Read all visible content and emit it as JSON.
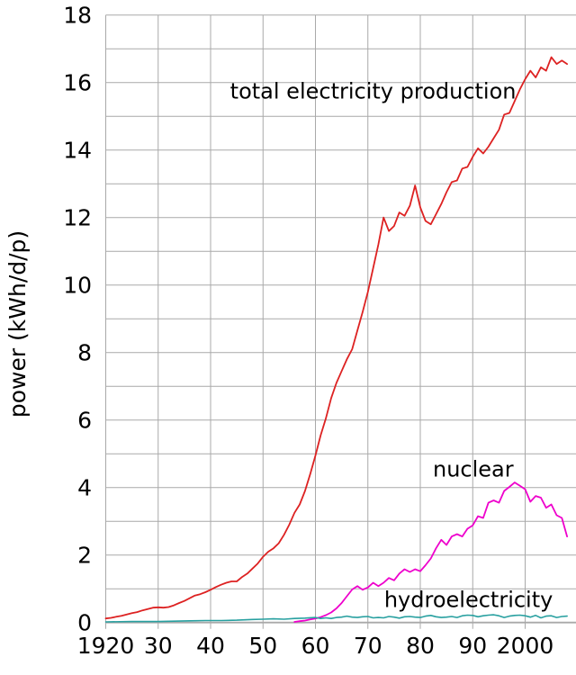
{
  "chart_data": {
    "type": "line",
    "title": "",
    "xlabel": "",
    "ylabel": "power (kWh/d/p)",
    "xlim": [
      1920,
      2009.7
    ],
    "ylim": [
      0,
      18
    ],
    "grid": {
      "x_step_years": 10,
      "y_step": 1,
      "shown": true
    },
    "legend_position": "inline-labels",
    "colors": {
      "total": "#dd2222",
      "nuclear": "#ee00cc",
      "hydro": "#28a0a0",
      "grid": "#a9a9a9",
      "text": "#000000"
    },
    "x_ticks": [
      {
        "year": 1920,
        "label": "1920"
      },
      {
        "year": 1930,
        "label": "30"
      },
      {
        "year": 1940,
        "label": "40"
      },
      {
        "year": 1950,
        "label": "50"
      },
      {
        "year": 1960,
        "label": "60"
      },
      {
        "year": 1970,
        "label": "70"
      },
      {
        "year": 1980,
        "label": "80"
      },
      {
        "year": 1990,
        "label": "90"
      },
      {
        "year": 2000,
        "label": "2000"
      }
    ],
    "y_ticks": [
      {
        "value": 0,
        "label": "0"
      },
      {
        "value": 2,
        "label": "2"
      },
      {
        "value": 4,
        "label": "4"
      },
      {
        "value": 6,
        "label": "6"
      },
      {
        "value": 8,
        "label": "8"
      },
      {
        "value": 10,
        "label": "10"
      },
      {
        "value": 12,
        "label": "12"
      },
      {
        "value": 14,
        "label": "14"
      },
      {
        "value": 16,
        "label": "16"
      },
      {
        "value": 18,
        "label": "18"
      }
    ],
    "series": [
      {
        "name": "total electricity production",
        "key": "total",
        "color": "#dd2222",
        "points": [
          [
            1920,
            0.12
          ],
          [
            1921,
            0.14
          ],
          [
            1922,
            0.17
          ],
          [
            1923,
            0.2
          ],
          [
            1924,
            0.24
          ],
          [
            1925,
            0.28
          ],
          [
            1926,
            0.31
          ],
          [
            1927,
            0.36
          ],
          [
            1928,
            0.4
          ],
          [
            1929,
            0.44
          ],
          [
            1930,
            0.45
          ],
          [
            1931,
            0.44
          ],
          [
            1932,
            0.46
          ],
          [
            1933,
            0.51
          ],
          [
            1934,
            0.58
          ],
          [
            1935,
            0.64
          ],
          [
            1936,
            0.72
          ],
          [
            1937,
            0.8
          ],
          [
            1938,
            0.84
          ],
          [
            1939,
            0.9
          ],
          [
            1940,
            0.97
          ],
          [
            1941,
            1.05
          ],
          [
            1942,
            1.12
          ],
          [
            1943,
            1.18
          ],
          [
            1944,
            1.22
          ],
          [
            1945,
            1.22
          ],
          [
            1946,
            1.35
          ],
          [
            1947,
            1.45
          ],
          [
            1948,
            1.6
          ],
          [
            1949,
            1.75
          ],
          [
            1950,
            1.95
          ],
          [
            1951,
            2.1
          ],
          [
            1952,
            2.2
          ],
          [
            1953,
            2.35
          ],
          [
            1954,
            2.6
          ],
          [
            1955,
            2.9
          ],
          [
            1956,
            3.25
          ],
          [
            1957,
            3.5
          ],
          [
            1958,
            3.9
          ],
          [
            1959,
            4.4
          ],
          [
            1960,
            4.95
          ],
          [
            1961,
            5.55
          ],
          [
            1962,
            6.05
          ],
          [
            1963,
            6.65
          ],
          [
            1964,
            7.1
          ],
          [
            1965,
            7.45
          ],
          [
            1966,
            7.8
          ],
          [
            1967,
            8.1
          ],
          [
            1968,
            8.65
          ],
          [
            1969,
            9.2
          ],
          [
            1970,
            9.8
          ],
          [
            1971,
            10.5
          ],
          [
            1972,
            11.2
          ],
          [
            1973,
            12.0
          ],
          [
            1974,
            11.6
          ],
          [
            1975,
            11.75
          ],
          [
            1976,
            12.15
          ],
          [
            1977,
            12.05
          ],
          [
            1978,
            12.35
          ],
          [
            1979,
            12.95
          ],
          [
            1980,
            12.3
          ],
          [
            1981,
            11.9
          ],
          [
            1982,
            11.8
          ],
          [
            1983,
            12.1
          ],
          [
            1984,
            12.4
          ],
          [
            1985,
            12.75
          ],
          [
            1986,
            13.05
          ],
          [
            1987,
            13.1
          ],
          [
            1988,
            13.45
          ],
          [
            1989,
            13.5
          ],
          [
            1990,
            13.8
          ],
          [
            1991,
            14.05
          ],
          [
            1992,
            13.9
          ],
          [
            1993,
            14.1
          ],
          [
            1994,
            14.35
          ],
          [
            1995,
            14.6
          ],
          [
            1996,
            15.05
          ],
          [
            1997,
            15.1
          ],
          [
            1998,
            15.45
          ],
          [
            1999,
            15.8
          ],
          [
            2000,
            16.1
          ],
          [
            2001,
            16.35
          ],
          [
            2002,
            16.15
          ],
          [
            2003,
            16.45
          ],
          [
            2004,
            16.35
          ],
          [
            2005,
            16.75
          ],
          [
            2006,
            16.55
          ],
          [
            2007,
            16.65
          ],
          [
            2008,
            16.55
          ]
        ]
      },
      {
        "name": "nuclear",
        "key": "nuclear",
        "color": "#ee00cc",
        "points": [
          [
            1956,
            0.02
          ],
          [
            1957,
            0.04
          ],
          [
            1958,
            0.06
          ],
          [
            1959,
            0.09
          ],
          [
            1960,
            0.12
          ],
          [
            1961,
            0.16
          ],
          [
            1962,
            0.22
          ],
          [
            1963,
            0.3
          ],
          [
            1964,
            0.42
          ],
          [
            1965,
            0.58
          ],
          [
            1966,
            0.78
          ],
          [
            1967,
            0.98
          ],
          [
            1968,
            1.08
          ],
          [
            1969,
            0.97
          ],
          [
            1970,
            1.04
          ],
          [
            1971,
            1.18
          ],
          [
            1972,
            1.08
          ],
          [
            1973,
            1.18
          ],
          [
            1974,
            1.32
          ],
          [
            1975,
            1.25
          ],
          [
            1976,
            1.45
          ],
          [
            1977,
            1.58
          ],
          [
            1978,
            1.5
          ],
          [
            1979,
            1.58
          ],
          [
            1980,
            1.52
          ],
          [
            1981,
            1.7
          ],
          [
            1982,
            1.9
          ],
          [
            1983,
            2.2
          ],
          [
            1984,
            2.45
          ],
          [
            1985,
            2.3
          ],
          [
            1986,
            2.55
          ],
          [
            1987,
            2.62
          ],
          [
            1988,
            2.55
          ],
          [
            1989,
            2.78
          ],
          [
            1990,
            2.88
          ],
          [
            1991,
            3.15
          ],
          [
            1992,
            3.1
          ],
          [
            1993,
            3.55
          ],
          [
            1994,
            3.62
          ],
          [
            1995,
            3.55
          ],
          [
            1996,
            3.9
          ],
          [
            1997,
            4.02
          ],
          [
            1998,
            4.15
          ],
          [
            1999,
            4.05
          ],
          [
            2000,
            3.95
          ],
          [
            2001,
            3.58
          ],
          [
            2002,
            3.75
          ],
          [
            2003,
            3.7
          ],
          [
            2004,
            3.4
          ],
          [
            2005,
            3.5
          ],
          [
            2006,
            3.18
          ],
          [
            2007,
            3.1
          ],
          [
            2008,
            2.55
          ]
        ]
      },
      {
        "name": "hydroelectricity",
        "key": "hydro",
        "color": "#28a0a0",
        "points": [
          [
            1920,
            0.02
          ],
          [
            1925,
            0.03
          ],
          [
            1930,
            0.03
          ],
          [
            1933,
            0.04
          ],
          [
            1936,
            0.05
          ],
          [
            1939,
            0.06
          ],
          [
            1942,
            0.06
          ],
          [
            1945,
            0.07
          ],
          [
            1948,
            0.09
          ],
          [
            1950,
            0.1
          ],
          [
            1952,
            0.11
          ],
          [
            1954,
            0.1
          ],
          [
            1956,
            0.12
          ],
          [
            1958,
            0.13
          ],
          [
            1960,
            0.15
          ],
          [
            1961,
            0.12
          ],
          [
            1962,
            0.14
          ],
          [
            1963,
            0.12
          ],
          [
            1964,
            0.15
          ],
          [
            1965,
            0.16
          ],
          [
            1966,
            0.19
          ],
          [
            1967,
            0.16
          ],
          [
            1968,
            0.15
          ],
          [
            1969,
            0.17
          ],
          [
            1970,
            0.18
          ],
          [
            1971,
            0.14
          ],
          [
            1972,
            0.15
          ],
          [
            1973,
            0.14
          ],
          [
            1974,
            0.18
          ],
          [
            1975,
            0.16
          ],
          [
            1976,
            0.13
          ],
          [
            1977,
            0.17
          ],
          [
            1978,
            0.18
          ],
          [
            1979,
            0.16
          ],
          [
            1980,
            0.15
          ],
          [
            1981,
            0.19
          ],
          [
            1982,
            0.21
          ],
          [
            1983,
            0.17
          ],
          [
            1984,
            0.15
          ],
          [
            1985,
            0.16
          ],
          [
            1986,
            0.18
          ],
          [
            1987,
            0.15
          ],
          [
            1988,
            0.2
          ],
          [
            1989,
            0.22
          ],
          [
            1990,
            0.21
          ],
          [
            1991,
            0.17
          ],
          [
            1992,
            0.2
          ],
          [
            1993,
            0.22
          ],
          [
            1994,
            0.23
          ],
          [
            1995,
            0.2
          ],
          [
            1996,
            0.15
          ],
          [
            1997,
            0.19
          ],
          [
            1998,
            0.21
          ],
          [
            1999,
            0.22
          ],
          [
            2000,
            0.2
          ],
          [
            2001,
            0.16
          ],
          [
            2002,
            0.21
          ],
          [
            2003,
            0.14
          ],
          [
            2004,
            0.19
          ],
          [
            2005,
            0.2
          ],
          [
            2006,
            0.15
          ],
          [
            2007,
            0.18
          ],
          [
            2008,
            0.19
          ]
        ]
      }
    ],
    "annotations": [
      {
        "text": "total electricity production",
        "year": 1971.0,
        "value": 15.75,
        "series": "total"
      },
      {
        "text": "nuclear",
        "year": 1990.1,
        "value": 4.55,
        "series": "nuclear"
      },
      {
        "text": "hydroelectricity",
        "year": 1989.2,
        "value": 0.69,
        "series": "hydro"
      }
    ]
  }
}
